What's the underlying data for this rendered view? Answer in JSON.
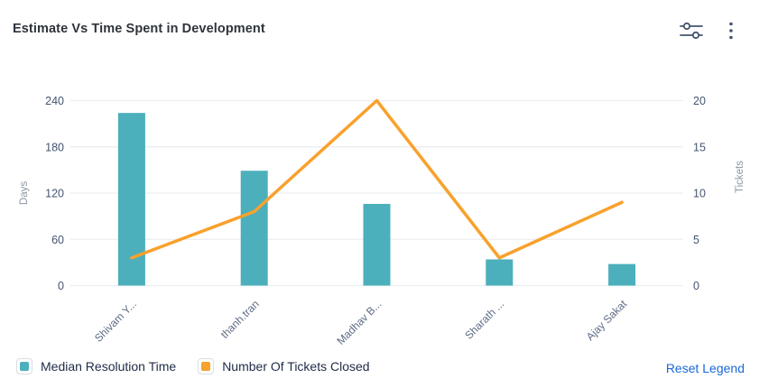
{
  "header": {
    "title": "Estimate Vs Time Spent in Development",
    "icons": [
      "sliders-icon",
      "kebab-menu-icon"
    ]
  },
  "chart_data": {
    "type": "bar",
    "title": "Estimate Vs Time Spent in Development",
    "categories": [
      "Shivam Y...",
      "thanh.tran",
      "Madhav B...",
      "Sharath ...",
      "Ajay Sakat"
    ],
    "series": [
      {
        "name": "Median Resolution Time",
        "type": "bar",
        "axis": "left",
        "color": "#4CAFBC",
        "values": [
          224,
          149,
          106,
          34,
          28
        ]
      },
      {
        "name": "Number Of Tickets Closed",
        "type": "line",
        "axis": "right",
        "color": "#F8A12C",
        "values": [
          3,
          8,
          20,
          3,
          9
        ]
      }
    ],
    "left_axis": {
      "label": "Days",
      "ticks": [
        0,
        60,
        120,
        180,
        240
      ],
      "ylim": [
        0,
        240
      ]
    },
    "right_axis": {
      "label": "Tickets",
      "ticks": [
        0,
        5,
        10,
        15,
        20
      ],
      "ylim": [
        0,
        20
      ]
    },
    "grid": true,
    "legend_position": "bottom",
    "colors": {
      "gridline": "#ECEDF0",
      "tick_text": "#44546F",
      "category_text": "#5E6C84",
      "axis_name_text": "#8C95A3"
    }
  },
  "legend": {
    "items": [
      {
        "label": "Median Resolution Time",
        "color": "#4CAFBC"
      },
      {
        "label": "Number Of Tickets Closed",
        "color": "#F8A12C"
      }
    ],
    "reset_label": "Reset Legend",
    "reset_color": "#1868DB"
  }
}
